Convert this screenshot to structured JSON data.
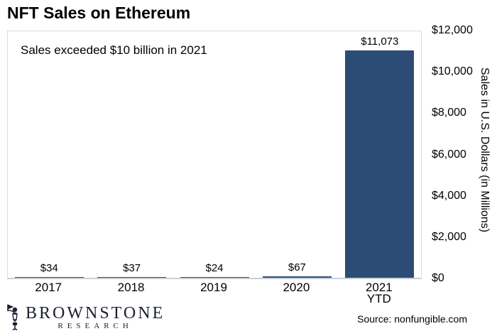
{
  "page": {
    "title": "NFT Sales on Ethereum"
  },
  "chart_data": {
    "type": "bar",
    "title": "NFT Sales on Ethereum",
    "annotation": "Sales exceeded $10 billion in 2021",
    "categories": [
      "2017",
      "2018",
      "2019",
      "2020",
      "2021 YTD"
    ],
    "category_lines": [
      [
        "2017"
      ],
      [
        "2018"
      ],
      [
        "2019"
      ],
      [
        "2020"
      ],
      [
        "2021",
        "YTD"
      ]
    ],
    "values": [
      34,
      37,
      24,
      67,
      11073
    ],
    "value_labels": [
      "$34",
      "$37",
      "$24",
      "$67",
      "$11,073"
    ],
    "xlabel": "",
    "ylabel": "Sales in U.S. Dollars (in Millions)",
    "ylim": [
      0,
      12000
    ],
    "ytick_values": [
      12000,
      10000,
      8000,
      6000,
      4000,
      2000,
      0
    ],
    "ytick_labels": [
      "$12,000",
      "$10,000",
      "$8,000",
      "$6,000",
      "$4,000",
      "$2,000",
      "$0"
    ],
    "grid": false,
    "legend_position": "none",
    "bar_color": "#2d4c75",
    "axis_line_color": "#c9ced6",
    "plot_border_color": "#dcdcdc"
  },
  "footer": {
    "logo": {
      "line1": "BROWNSTONE",
      "line2": "RESEARCH",
      "icon": "lantern-icon"
    },
    "source": "Source: nonfungible.com"
  }
}
